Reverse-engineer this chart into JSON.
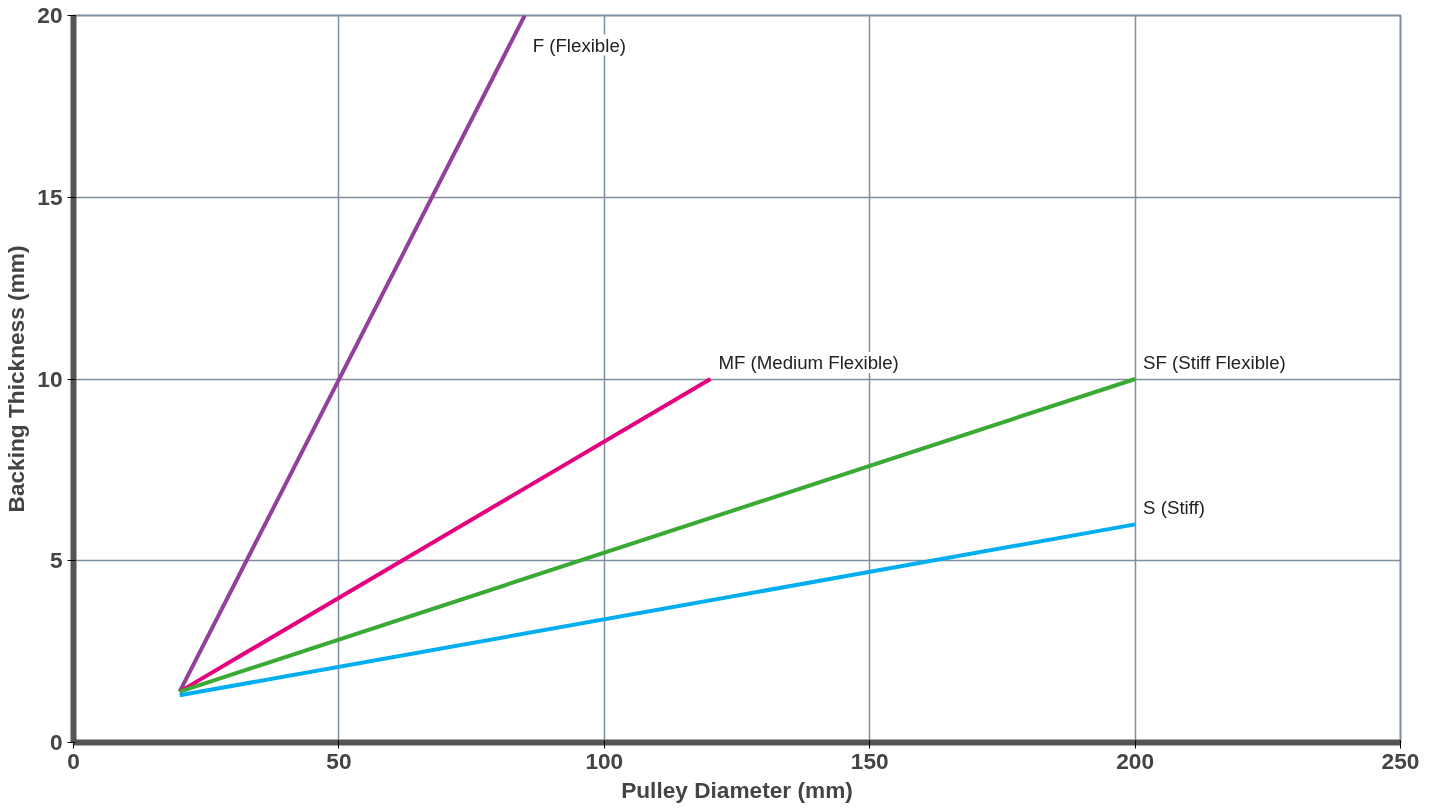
{
  "chart_data": {
    "type": "line",
    "xlabel": "Pulley Diameter (mm)",
    "ylabel": "Backing Thickness (mm)",
    "xlim": [
      0,
      250
    ],
    "xticks": [
      0,
      50,
      100,
      150,
      200,
      250
    ],
    "ylim": [
      0,
      20
    ],
    "yticks": [
      0,
      5,
      10,
      15,
      20
    ],
    "grid": true,
    "line_style": "solid",
    "series": [
      {
        "name": "F (Flexible)",
        "color": "#93409a",
        "x": [
          20,
          85
        ],
        "values": [
          1.4,
          20
        ]
      },
      {
        "name": "MF (Medium Flexible)",
        "color": "#e5007e",
        "x": [
          20,
          120
        ],
        "values": [
          1.4,
          10
        ]
      },
      {
        "name": "SF (Stiff Flexible)",
        "color": "#3aaa35",
        "x": [
          20,
          200
        ],
        "values": [
          1.4,
          10
        ]
      },
      {
        "name": "S (Stiff)",
        "color": "#00aeef",
        "x": [
          20,
          200
        ],
        "values": [
          1.3,
          6
        ]
      }
    ]
  }
}
